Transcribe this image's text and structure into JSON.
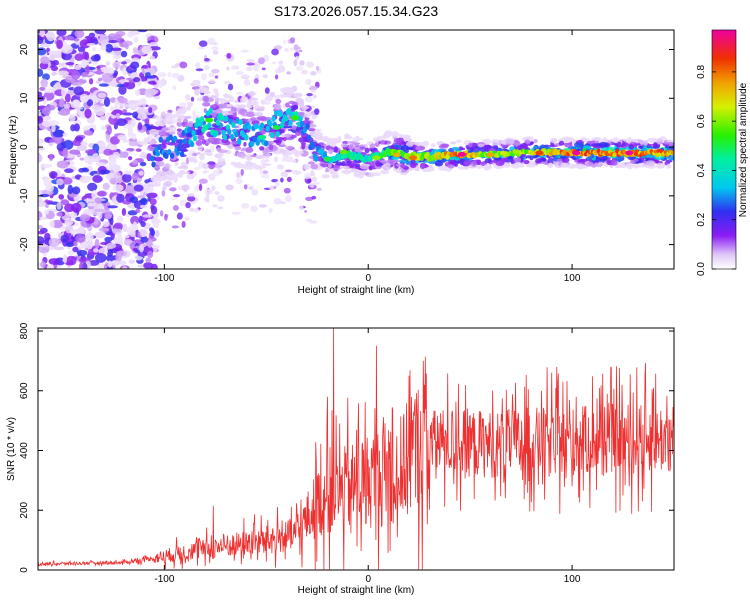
{
  "title": "S173.2026.057.15.34.G23",
  "chart_data": [
    {
      "type": "heatmap",
      "xlabel": "Height of straight line (km)",
      "ylabel": "Frequency (Hz)",
      "xlim": [
        -162,
        150
      ],
      "ylim": [
        -25,
        24
      ],
      "xticks": [
        -100,
        0,
        100
      ],
      "yticks": [
        -20,
        -10,
        0,
        10,
        20
      ],
      "colorbar": {
        "label": "Normalized spectral amplitude",
        "range": [
          0,
          0.97
        ],
        "ticks": [
          0.0,
          0.2,
          0.4,
          0.6,
          0.8
        ]
      },
      "ridge": [
        {
          "x": -105,
          "y": -1.5,
          "amp": 0.3
        },
        {
          "x": -90,
          "y": 1.0,
          "amp": 0.35
        },
        {
          "x": -80,
          "y": 5.5,
          "amp": 0.45
        },
        {
          "x": -70,
          "y": 4.0,
          "amp": 0.4
        },
        {
          "x": -55,
          "y": 2.0,
          "amp": 0.35
        },
        {
          "x": -45,
          "y": 4.5,
          "amp": 0.4
        },
        {
          "x": -35,
          "y": 5.5,
          "amp": 0.45
        },
        {
          "x": -30,
          "y": 2.0,
          "amp": 0.3
        },
        {
          "x": -20,
          "y": -2.5,
          "amp": 0.4
        },
        {
          "x": -10,
          "y": -1.5,
          "amp": 0.5
        },
        {
          "x": 0,
          "y": -2.5,
          "amp": 0.45
        },
        {
          "x": 10,
          "y": -1.0,
          "amp": 0.6
        },
        {
          "x": 20,
          "y": -1.8,
          "amp": 0.7
        },
        {
          "x": 30,
          "y": -2.0,
          "amp": 0.7
        },
        {
          "x": 45,
          "y": -1.5,
          "amp": 0.9
        },
        {
          "x": 60,
          "y": -1.5,
          "amp": 0.65
        },
        {
          "x": 80,
          "y": -1.0,
          "amp": 0.7
        },
        {
          "x": 100,
          "y": -1.2,
          "amp": 0.9
        },
        {
          "x": 120,
          "y": -1.2,
          "amp": 0.9
        },
        {
          "x": 148,
          "y": -1.2,
          "amp": 0.85
        }
      ]
    },
    {
      "type": "line",
      "xlabel": "Height of straight line (km)",
      "ylabel": "SNR (10 * v/v)",
      "xlim": [
        -162,
        150
      ],
      "ylim": [
        0,
        810
      ],
      "xticks": [
        -100,
        0,
        100
      ],
      "yticks": [
        0,
        200,
        400,
        600,
        800
      ],
      "color": "#ee3030",
      "trend": [
        {
          "x": -162,
          "y": 20
        },
        {
          "x": -120,
          "y": 25
        },
        {
          "x": -105,
          "y": 40
        },
        {
          "x": -90,
          "y": 60
        },
        {
          "x": -70,
          "y": 80
        },
        {
          "x": -50,
          "y": 100
        },
        {
          "x": -35,
          "y": 120
        },
        {
          "x": -25,
          "y": 220
        },
        {
          "x": -15,
          "y": 260
        },
        {
          "x": 0,
          "y": 300
        },
        {
          "x": 15,
          "y": 330
        },
        {
          "x": 25,
          "y": 420
        },
        {
          "x": 40,
          "y": 430
        },
        {
          "x": 60,
          "y": 420
        },
        {
          "x": 80,
          "y": 430
        },
        {
          "x": 100,
          "y": 430
        },
        {
          "x": 120,
          "y": 440
        },
        {
          "x": 150,
          "y": 440
        }
      ],
      "peaks": [
        {
          "x": -76,
          "y": 215
        },
        {
          "x": -20,
          "y": 580
        },
        {
          "x": -17,
          "y": 810
        },
        {
          "x": 4,
          "y": 750
        },
        {
          "x": 20,
          "y": 650
        },
        {
          "x": 27,
          "y": 700
        },
        {
          "x": 85,
          "y": 600
        },
        {
          "x": 102,
          "y": 580
        },
        {
          "x": 140,
          "y": 610
        }
      ],
      "dips": [
        {
          "x": 100,
          "y": 280
        },
        {
          "x": 128,
          "y": 280
        },
        {
          "x": 148,
          "y": 330
        }
      ]
    }
  ]
}
